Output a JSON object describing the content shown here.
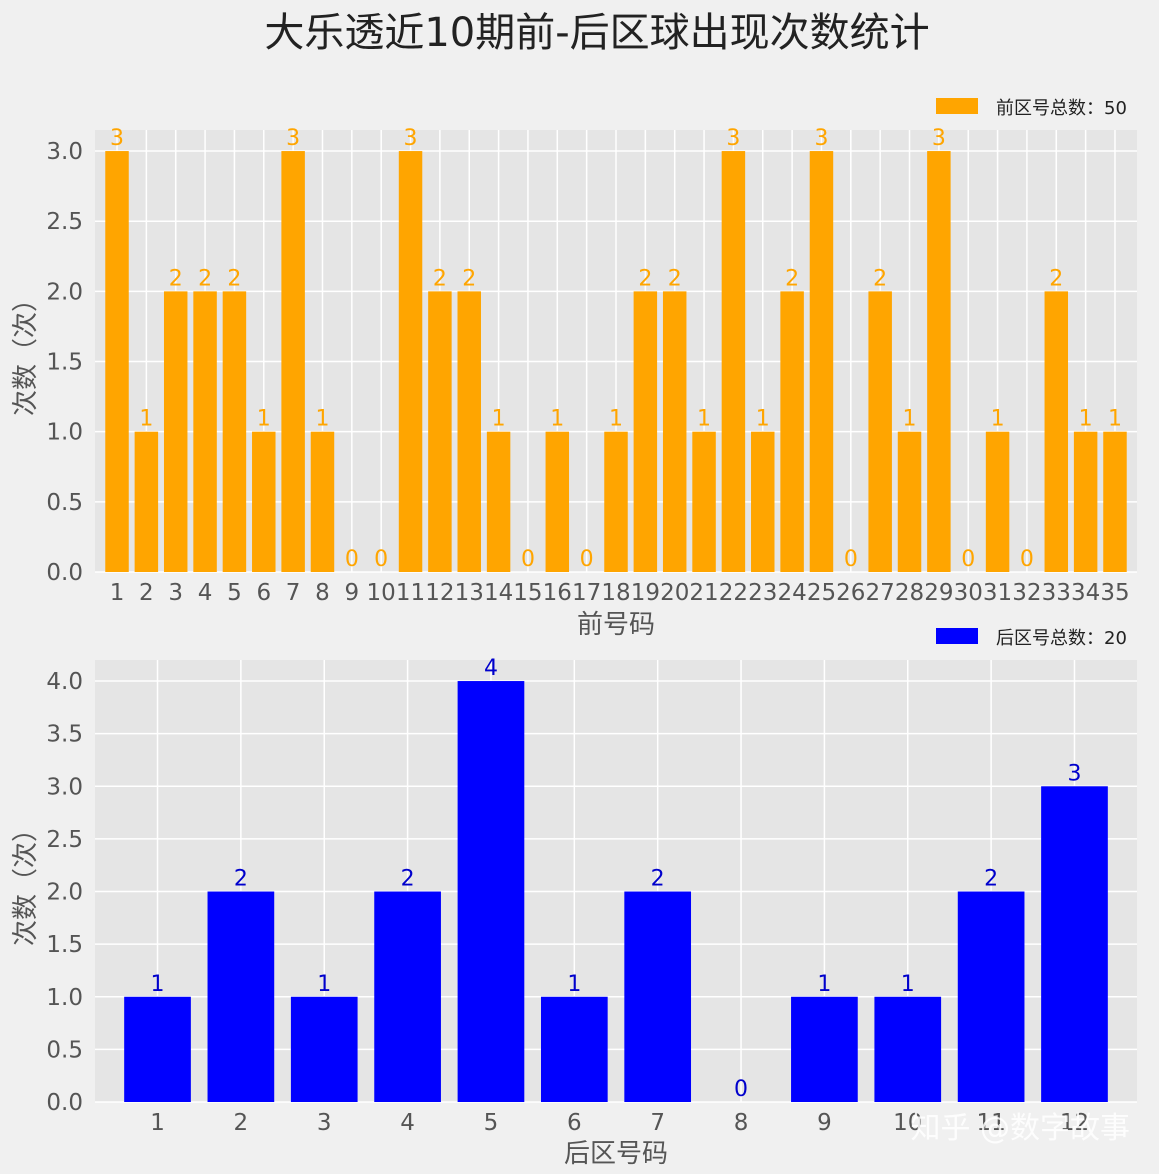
{
  "title": "大乐透近10期前-后区球出现次数统计",
  "watermark": "知乎 @数字故事",
  "chart_data": [
    {
      "type": "bar",
      "color": "#ffa500",
      "label_color": "#ffa500",
      "xlabel": "前号码",
      "ylabel": "次数（次）",
      "ylim": [
        0,
        3.15
      ],
      "yticks": [
        0.0,
        0.5,
        1.0,
        1.5,
        2.0,
        2.5,
        3.0
      ],
      "grid": true,
      "legend_position": "top-right",
      "series": [
        {
          "name": "前区号总数：50",
          "values": [
            3,
            1,
            2,
            2,
            2,
            1,
            3,
            1,
            0,
            0,
            3,
            2,
            2,
            1,
            0,
            1,
            0,
            1,
            2,
            2,
            1,
            3,
            1,
            2,
            3,
            0,
            2,
            1,
            3,
            0,
            1,
            0,
            2,
            1,
            1
          ]
        }
      ],
      "categories": [
        "1",
        "2",
        "3",
        "4",
        "5",
        "6",
        "7",
        "8",
        "9",
        "10",
        "11",
        "12",
        "13",
        "14",
        "15",
        "16",
        "17",
        "18",
        "19",
        "20",
        "21",
        "22",
        "23",
        "24",
        "25",
        "26",
        "27",
        "28",
        "29",
        "30",
        "31",
        "32",
        "33",
        "34",
        "35"
      ]
    },
    {
      "type": "bar",
      "color": "#0000ff",
      "label_color": "#0000cc",
      "xlabel": "后区号码",
      "ylabel": "次数（次）",
      "ylim": [
        0,
        4.2
      ],
      "yticks": [
        0.0,
        0.5,
        1.0,
        1.5,
        2.0,
        2.5,
        3.0,
        3.5,
        4.0
      ],
      "grid": true,
      "legend_position": "top-right",
      "series": [
        {
          "name": "后区号总数：20",
          "values": [
            1,
            2,
            1,
            2,
            4,
            1,
            2,
            0,
            1,
            1,
            2,
            3
          ]
        }
      ],
      "categories": [
        "1",
        "2",
        "3",
        "4",
        "5",
        "6",
        "7",
        "8",
        "9",
        "10",
        "11",
        "12"
      ]
    }
  ]
}
